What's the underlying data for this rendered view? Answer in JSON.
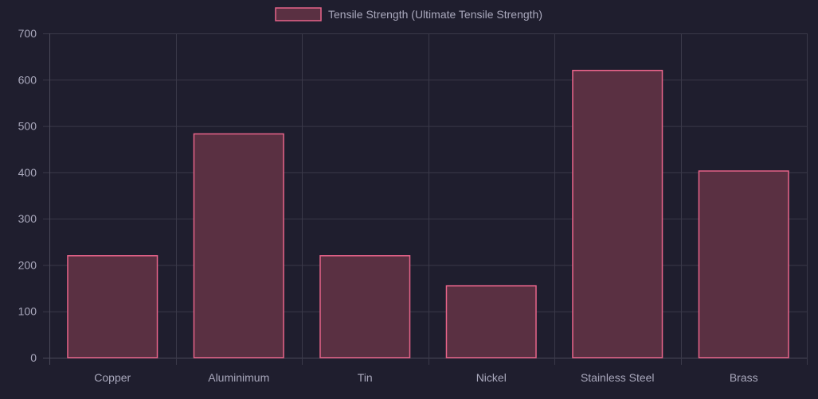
{
  "colors": {
    "background": "#1f1e2e",
    "bar_fill": "#5a3042",
    "bar_border": "#e8648a",
    "grid": "#3a3949",
    "text": "#a9a8bc"
  },
  "chart_data": {
    "type": "bar",
    "categories": [
      "Copper",
      "Aluminimum",
      "Tin",
      "Nickel",
      "Stainless Steel",
      "Brass"
    ],
    "series": [
      {
        "name": "Tensile Strength (Ultimate Tensile Strength)",
        "values": [
          220,
          483,
          220,
          155,
          620,
          403
        ]
      }
    ],
    "title": "",
    "xlabel": "",
    "ylabel": "",
    "ylim": [
      0,
      700
    ],
    "yticks": [
      0,
      100,
      200,
      300,
      400,
      500,
      600,
      700
    ],
    "grid": true,
    "legend": "top-center"
  }
}
